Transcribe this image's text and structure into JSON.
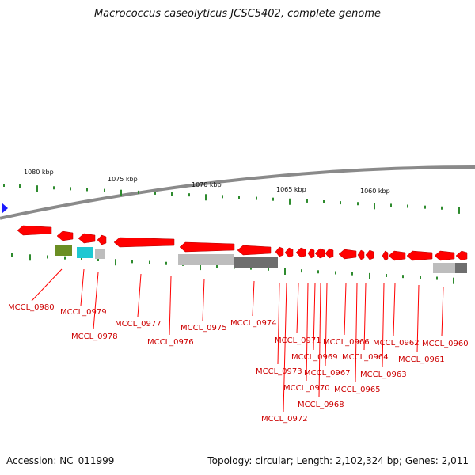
{
  "title": "Macrococcus caseolyticus JCSC5402, complete genome",
  "footer": {
    "accession_label": "Accession:",
    "accession": "NC_011999",
    "topology_label": "Topology:",
    "topology": "circular",
    "length_label": "Length:",
    "length": "2,102,324 bp",
    "genes_label": "Genes:",
    "genes": "2,011"
  },
  "colors": {
    "gene": "#ff0000",
    "label": "#cc0000",
    "tick": "#2e8b2e",
    "backbone": "#8a8a8a",
    "olive": "#6b8e23",
    "cyan": "#1ec8d2",
    "grey_light": "#bdbdbd",
    "grey_dark": "#6e6e6e",
    "marker": "#1a1aff"
  },
  "scale_labels": [
    "1080 kbp",
    "1075 kbp",
    "1070 kbp",
    "1065 kbp",
    "1060 kbp"
  ],
  "gene_labels": [
    "MCCL_0980",
    "MCCL_0979",
    "MCCL_0978",
    "MCCL_0977",
    "MCCL_0976",
    "MCCL_0975",
    "MCCL_0974",
    "MCCL_0973",
    "MCCL_0972",
    "MCCL_0971",
    "MCCL_0970",
    "MCCL_0969",
    "MCCL_0968",
    "MCCL_0967",
    "MCCL_0966",
    "MCCL_0965",
    "MCCL_0964",
    "MCCL_0963",
    "MCCL_0962",
    "MCCL_0961",
    "MCCL_0960"
  ]
}
